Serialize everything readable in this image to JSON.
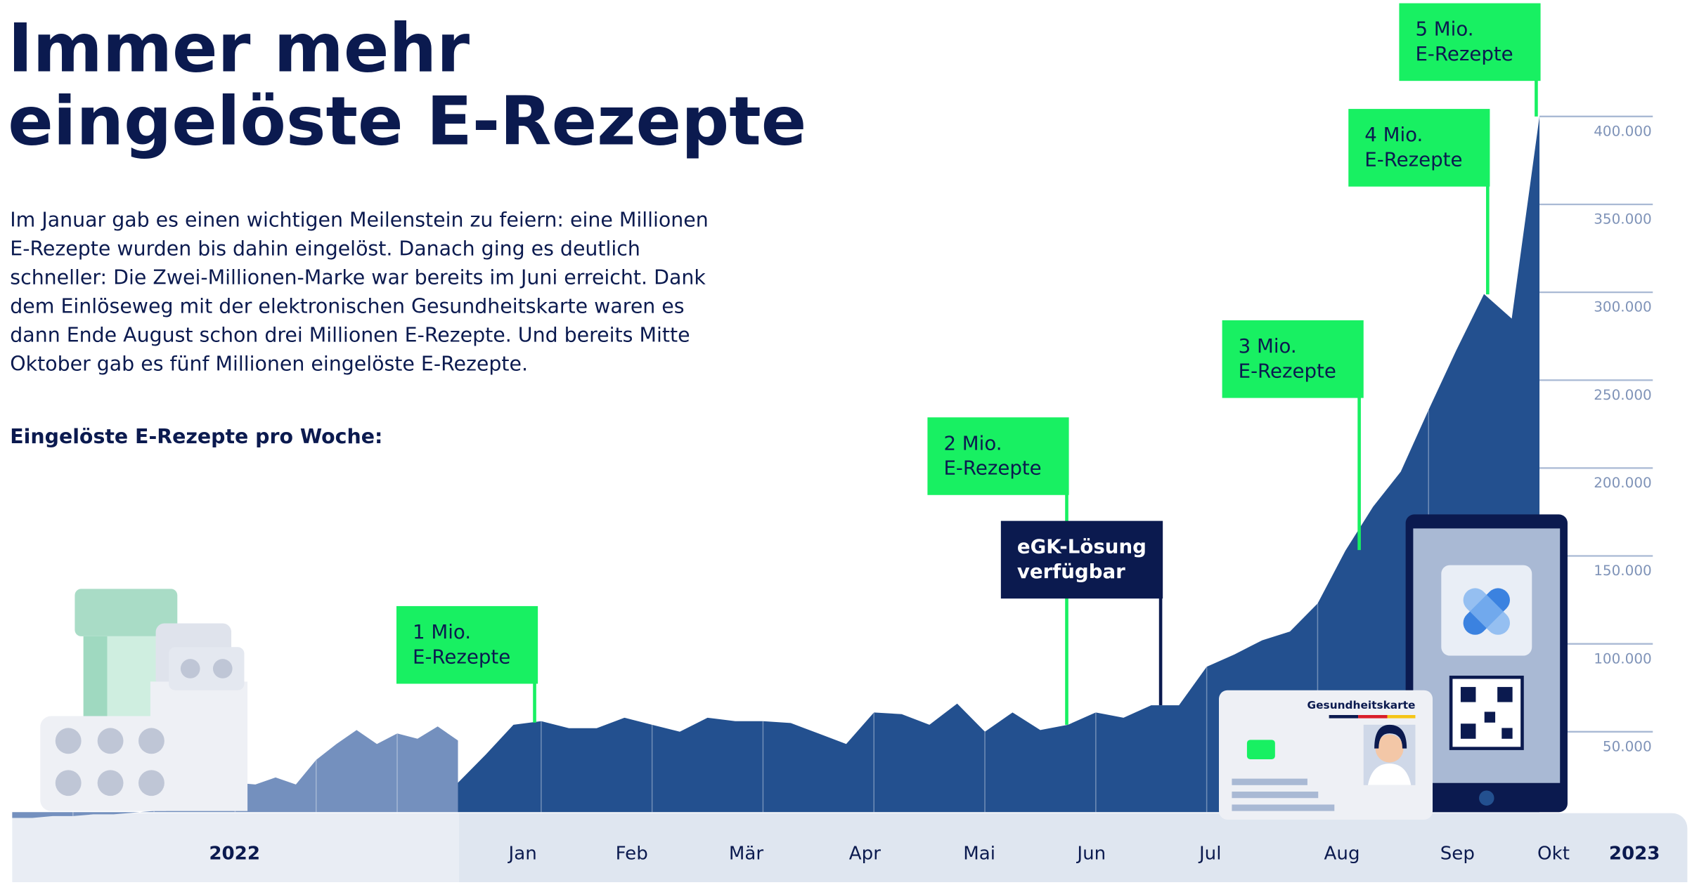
{
  "chart_data": {
    "type": "area",
    "title": [
      "Immer mehr",
      "eingelöste E-Rezepte"
    ],
    "intro": [
      "Im Januar gab es einen wichtigen Meilenstein zu feiern: eine Millionen",
      "E-Rezepte wurden bis dahin eingelöst. Danach ging es deutlich",
      "schneller: Die Zwei-Millionen-Marke war bereits im Juni erreicht. Dank",
      "dem Einlöseweg mit der elektronischen Gesundheitskarte waren es",
      "dann Ende August schon drei Millionen E-Rezepte. Und bereits Mitte",
      "Oktober gab es fünf Millionen eingelöste E-Rezepte."
    ],
    "subtitle": "Eingelöste E-Rezepte pro Woche:",
    "x_labels": [
      "2022",
      "Jan",
      "Feb",
      "Mär",
      "Apr",
      "Mai",
      "Jun",
      "Jul",
      "Aug",
      "Sep",
      "Okt",
      "2023"
    ],
    "series": [
      {
        "name": "2022",
        "color": "#7490be",
        "values": [
          1000,
          1000,
          2000,
          2000,
          3000,
          3000,
          4000,
          5000,
          7000,
          10000,
          14000,
          21000,
          20000,
          24000,
          20000,
          34000,
          43000,
          51000,
          43000,
          49000,
          46000,
          53000,
          45000
        ]
      },
      {
        "name": "2023",
        "color": "#23508f",
        "values": [
          21000,
          37000,
          54000,
          56000,
          52000,
          52000,
          58000,
          54000,
          50000,
          58000,
          56000,
          56000,
          55000,
          49000,
          43000,
          61000,
          60000,
          54000,
          66000,
          50000,
          61000,
          51000,
          54000,
          61000,
          58000,
          65000,
          65000,
          87000,
          94000,
          102000,
          107000,
          123000,
          153000,
          178000,
          198000,
          233000,
          267000,
          299000,
          285000,
          400000
        ]
      }
    ],
    "ylim": [
      0,
      400000
    ],
    "yticks": [
      {
        "value": 50000,
        "label": "50.000"
      },
      {
        "value": 100000,
        "label": "100.000"
      },
      {
        "value": 150000,
        "label": "150.000"
      },
      {
        "value": 200000,
        "label": "200.000"
      },
      {
        "value": 250000,
        "label": "250.000"
      },
      {
        "value": 300000,
        "label": "300.000"
      },
      {
        "value": 350000,
        "label": "350.000"
      },
      {
        "value": 400000,
        "label": "400.000"
      }
    ],
    "annotations": [
      {
        "lines": [
          "1 Mio.",
          "E-Rezepte"
        ],
        "color": "#18f062"
      },
      {
        "lines": [
          "2 Mio.",
          "E-Rezepte"
        ],
        "color": "#18f062"
      },
      {
        "lines": [
          "eGK-Lösung",
          "verfügbar"
        ],
        "color": "#0b1a4f"
      },
      {
        "lines": [
          "3 Mio.",
          "E-Rezepte"
        ],
        "color": "#18f062"
      },
      {
        "lines": [
          "4 Mio.",
          "E-Rezepte"
        ],
        "color": "#18f062"
      },
      {
        "lines": [
          "5 Mio.",
          "E-Rezepte"
        ],
        "color": "#18f062"
      }
    ],
    "card_label": "Gesundheitskarte"
  }
}
